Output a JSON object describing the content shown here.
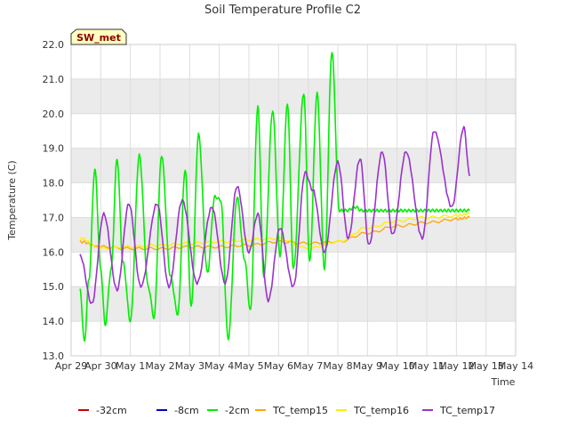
{
  "chart_data": {
    "type": "line",
    "title": "Soil Temperature Profile C2",
    "xlabel": "Time",
    "ylabel": "Temperature (C)",
    "badge": "SW_met",
    "ylim": [
      13.0,
      22.0
    ],
    "yticks": [
      13.0,
      14.0,
      15.0,
      16.0,
      17.0,
      18.0,
      19.0,
      20.0,
      21.0,
      22.0
    ],
    "ytick_labels": [
      "13.0",
      "14.0",
      "15.0",
      "16.0",
      "17.0",
      "18.0",
      "19.0",
      "20.0",
      "21.0",
      "22.0"
    ],
    "xlim": [
      0,
      15
    ],
    "xticks": [
      0,
      1,
      2,
      3,
      4,
      5,
      6,
      7,
      8,
      9,
      10,
      11,
      12,
      13,
      14,
      15
    ],
    "xtick_labels": [
      "Apr 29",
      "Apr 30",
      "May 1",
      "May 2",
      "May 3",
      "May 4",
      "May 5",
      "May 6",
      "May 7",
      "May 8",
      "May 9",
      "May 10",
      "May 11",
      "May 12",
      "May 13",
      "May 14"
    ],
    "grid": true,
    "legend_position": "bottom",
    "colors": {
      "plot_band": "#ebebeb",
      "-32cm": "#cc0000",
      "-8cm": "#0000cc",
      "-2cm": "#00ee00",
      "TC_temp15": "#ffa500",
      "TC_temp16": "#ffee00",
      "TC_temp17": "#9933cc"
    },
    "series": [
      {
        "name": "-32cm",
        "x": [],
        "values": []
      },
      {
        "name": "-8cm",
        "x": [],
        "values": []
      },
      {
        "name": "-2cm",
        "x": [
          0.3,
          0.45,
          0.6,
          0.8,
          1.0,
          1.15,
          1.35,
          1.55,
          1.75,
          2.0,
          2.3,
          2.6,
          2.8,
          3.05,
          3.35,
          3.6,
          3.85,
          4.05,
          4.3,
          4.6,
          4.85,
          5.05,
          5.3,
          5.6,
          5.85,
          6.05,
          6.3,
          6.5,
          6.8,
          7.05,
          7.3,
          7.5,
          7.85,
          8.05,
          8.3,
          8.55,
          8.8,
          9.05,
          9.3,
          9.6,
          9.8,
          10.05,
          10.3,
          10.6,
          10.8,
          11.05,
          11.3,
          11.6,
          11.8,
          12.05,
          12.3,
          12.6,
          12.8,
          13.05,
          13.25,
          13.45
        ],
        "values": [
          14.9,
          13.4,
          15.2,
          18.4,
          15.5,
          13.9,
          15.5,
          18.7,
          15.7,
          14.0,
          18.8,
          15.0,
          14.1,
          18.8,
          15.3,
          14.2,
          18.4,
          14.4,
          19.4,
          15.4,
          17.6,
          17.5,
          13.5,
          17.6,
          15.8,
          14.3,
          20.2,
          15.3,
          20.1,
          15.9,
          20.3,
          15.5,
          20.6,
          15.7,
          20.6,
          15.5,
          21.8,
          17.2,
          17.2,
          17.3,
          17.2,
          17.2,
          17.2,
          17.2,
          17.2,
          17.2,
          17.2,
          17.2,
          17.2,
          17.2,
          17.2,
          17.2,
          17.2,
          17.2,
          17.2,
          17.2
        ]
      },
      {
        "name": "TC_temp15",
        "x": [
          0.3,
          1.0,
          2.0,
          3.0,
          4.0,
          5.0,
          6.0,
          7.0,
          8.0,
          9.0,
          10.0,
          11.0,
          12.0,
          13.0,
          13.45
        ],
        "values": [
          16.3,
          16.15,
          16.1,
          16.1,
          16.15,
          16.15,
          16.2,
          16.3,
          16.25,
          16.3,
          16.55,
          16.75,
          16.85,
          16.95,
          17.0
        ]
      },
      {
        "name": "TC_temp16",
        "x": [
          0.3,
          1.0,
          2.0,
          3.0,
          4.0,
          5.0,
          6.0,
          7.0,
          8.0,
          9.0,
          10.0,
          11.0,
          12.0,
          13.0,
          13.45
        ],
        "values": [
          16.4,
          16.1,
          16.15,
          16.2,
          16.25,
          16.3,
          16.35,
          16.4,
          16.1,
          16.3,
          16.7,
          16.9,
          17.0,
          17.05,
          17.1
        ]
      },
      {
        "name": "TC_temp17",
        "x": [
          0.3,
          0.7,
          1.1,
          1.55,
          1.95,
          2.35,
          2.9,
          3.3,
          3.75,
          4.25,
          4.75,
          5.2,
          5.6,
          6.0,
          6.3,
          6.65,
          7.05,
          7.5,
          7.9,
          8.15,
          8.55,
          9.0,
          9.35,
          9.75,
          10.05,
          10.5,
          10.85,
          11.3,
          11.85,
          12.25,
          12.85,
          13.25,
          13.45
        ],
        "values": [
          15.9,
          14.5,
          17.1,
          14.9,
          17.4,
          15.0,
          17.4,
          15.0,
          17.5,
          15.1,
          17.3,
          15.1,
          17.9,
          16.0,
          17.1,
          14.6,
          16.7,
          15.0,
          18.3,
          17.8,
          16.0,
          18.6,
          16.4,
          18.7,
          16.2,
          18.9,
          16.5,
          18.9,
          16.4,
          19.5,
          17.3,
          19.6,
          18.2
        ]
      }
    ]
  }
}
